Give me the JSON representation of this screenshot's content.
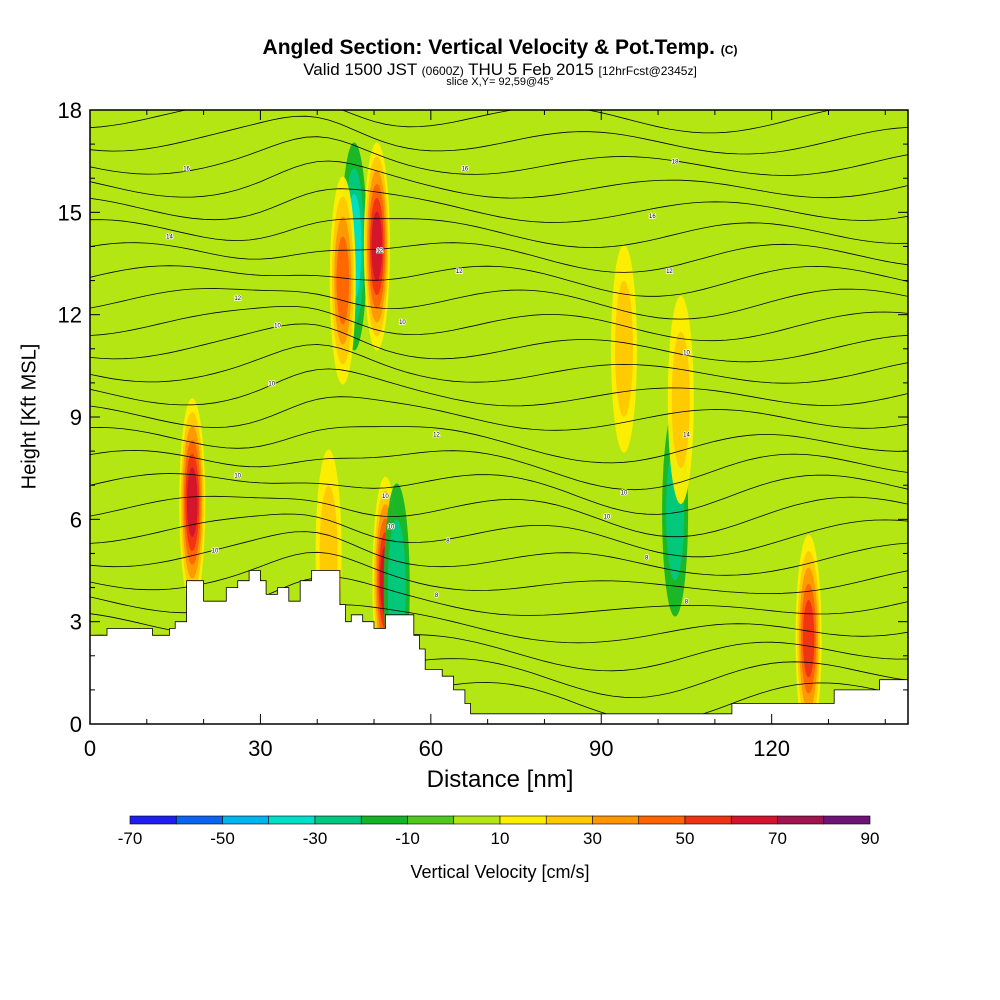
{
  "title": "Angled Section: Vertical Velocity & Pot.Temp.",
  "title_units": "(C)",
  "subtitle_valid": "Valid 1500 JST",
  "subtitle_z": "(0600Z)",
  "subtitle_date": "THU 5 Feb 2015",
  "subtitle_fcst": "[12hrFcst@2345z]",
  "slice_label": "slice X,Y= 92,59@45°",
  "chart_data": {
    "type": "heatmap",
    "xlabel": "Distance [nm]",
    "ylabel": "Height [Kft MSL]",
    "xlim": [
      0,
      144
    ],
    "ylim": [
      0,
      18
    ],
    "x_ticks": [
      0,
      30,
      60,
      90,
      120
    ],
    "y_ticks": [
      0,
      3,
      6,
      9,
      12,
      15,
      18
    ],
    "colorbar": {
      "label": "Vertical Velocity [cm/s]",
      "tick_labels": [
        "-70",
        "-50",
        "-30",
        "-10",
        "10",
        "30",
        "50",
        "70",
        "90"
      ],
      "bins": [
        -70,
        -60,
        -50,
        -40,
        -30,
        -20,
        -10,
        0,
        10,
        20,
        30,
        40,
        50,
        60,
        70,
        80,
        90
      ],
      "colors": [
        "#1e1ef0",
        "#0a64f0",
        "#00b4f0",
        "#00e0c8",
        "#00c880",
        "#14b428",
        "#50c81e",
        "#b4e614",
        "#ffee00",
        "#ffc800",
        "#ff9600",
        "#ff6400",
        "#f03214",
        "#d2142d",
        "#a01450",
        "#6e1478"
      ]
    },
    "terrain_profile": [
      [
        0,
        2.6
      ],
      [
        2,
        2.6
      ],
      [
        3,
        2.8
      ],
      [
        10,
        2.8
      ],
      [
        11,
        2.6
      ],
      [
        13,
        2.6
      ],
      [
        14,
        2.8
      ],
      [
        15,
        3.0
      ],
      [
        16,
        3.0
      ],
      [
        17,
        4.2
      ],
      [
        19,
        4.2
      ],
      [
        20,
        3.6
      ],
      [
        22,
        3.6
      ],
      [
        24,
        4.0
      ],
      [
        26,
        4.2
      ],
      [
        28,
        4.5
      ],
      [
        30,
        4.2
      ],
      [
        31,
        3.8
      ],
      [
        33,
        4.0
      ],
      [
        35,
        3.6
      ],
      [
        37,
        4.2
      ],
      [
        39,
        4.5
      ],
      [
        42,
        4.5
      ],
      [
        44,
        3.5
      ],
      [
        45,
        3.0
      ],
      [
        46,
        3.2
      ],
      [
        48,
        3.0
      ],
      [
        50,
        2.8
      ],
      [
        52,
        3.2
      ],
      [
        56,
        3.2
      ],
      [
        57,
        2.6
      ],
      [
        58,
        2.2
      ],
      [
        59,
        1.6
      ],
      [
        62,
        1.4
      ],
      [
        64,
        1.0
      ],
      [
        66,
        0.6
      ],
      [
        67,
        0.3
      ],
      [
        112,
        0.3
      ],
      [
        113,
        0.6
      ],
      [
        120,
        0.6
      ],
      [
        127,
        0.6
      ],
      [
        131,
        1.0
      ],
      [
        138,
        1.0
      ],
      [
        139,
        1.3
      ],
      [
        144,
        1.3
      ]
    ],
    "velocity_features": [
      {
        "x": 18.0,
        "y": 6.5,
        "value": 70
      },
      {
        "x": 46.5,
        "y": 14.0,
        "value": -40
      },
      {
        "x": 44.5,
        "y": 13.0,
        "value": 50
      },
      {
        "x": 50.5,
        "y": 14.0,
        "value": 70
      },
      {
        "x": 52.0,
        "y": 4.2,
        "value": 70
      },
      {
        "x": 54.0,
        "y": 4.0,
        "value": -30
      },
      {
        "x": 103.0,
        "y": 6.2,
        "value": -30
      },
      {
        "x": 126.5,
        "y": 2.5,
        "value": 60
      },
      {
        "x": 94.0,
        "y": 11.0,
        "value": 30
      },
      {
        "x": 104.0,
        "y": 9.5,
        "value": 30
      },
      {
        "x": 42.0,
        "y": 5.0,
        "value": 30
      },
      {
        "x": 27.0,
        "y": 14.5,
        "value": -10
      },
      {
        "x": 33.0,
        "y": 15.5,
        "value": -10
      },
      {
        "x": 58.0,
        "y": 8.0,
        "value": -10
      },
      {
        "x": 128.0,
        "y": 8.0,
        "value": -10
      }
    ],
    "isentrope_count": 26,
    "contour_labels": [
      {
        "text": "16",
        "x": 17,
        "y": 16.3
      },
      {
        "text": "16",
        "x": 66,
        "y": 16.3
      },
      {
        "text": "18",
        "x": 103,
        "y": 16.5
      },
      {
        "text": "16",
        "x": 99,
        "y": 14.9
      },
      {
        "text": "14",
        "x": 14,
        "y": 14.3
      },
      {
        "text": "12",
        "x": 51,
        "y": 13.9
      },
      {
        "text": "12",
        "x": 65,
        "y": 13.3
      },
      {
        "text": "12",
        "x": 102,
        "y": 13.3
      },
      {
        "text": "12",
        "x": 26,
        "y": 12.5
      },
      {
        "text": "10",
        "x": 33,
        "y": 11.7
      },
      {
        "text": "10",
        "x": 55,
        "y": 11.8
      },
      {
        "text": "10",
        "x": 105,
        "y": 10.9
      },
      {
        "text": "10",
        "x": 32,
        "y": 10.0
      },
      {
        "text": "12",
        "x": 61,
        "y": 8.5
      },
      {
        "text": "14",
        "x": 105,
        "y": 8.5
      },
      {
        "text": "10",
        "x": 26,
        "y": 7.3
      },
      {
        "text": "10",
        "x": 94,
        "y": 6.8
      },
      {
        "text": "10",
        "x": 52,
        "y": 6.7
      },
      {
        "text": "10",
        "x": 91,
        "y": 6.1
      },
      {
        "text": "10",
        "x": 53,
        "y": 5.8
      },
      {
        "text": "8",
        "x": 63,
        "y": 5.4
      },
      {
        "text": "10",
        "x": 22,
        "y": 5.1
      },
      {
        "text": "8",
        "x": 98,
        "y": 4.9
      },
      {
        "text": "8",
        "x": 61,
        "y": 3.8
      },
      {
        "text": "8",
        "x": 105,
        "y": 3.6
      }
    ]
  }
}
